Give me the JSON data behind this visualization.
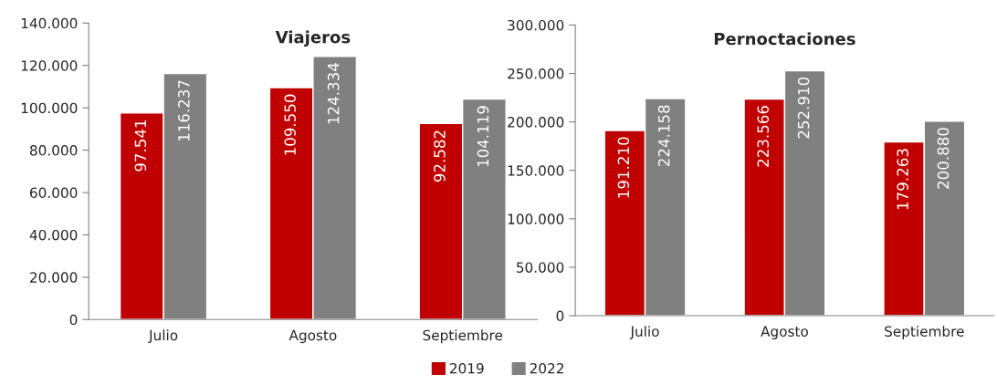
{
  "chart_data": [
    {
      "type": "bar",
      "title": "Viajeros",
      "categories": [
        "Julio",
        "Agosto",
        "Septiembre"
      ],
      "series": [
        {
          "name": "2019",
          "color": "#c00000",
          "values": [
            97541,
            109550,
            92582
          ],
          "value_labels": [
            "97.541",
            "109.550",
            "92.582"
          ]
        },
        {
          "name": "2022",
          "color": "#808080",
          "values": [
            116237,
            124334,
            104119
          ],
          "value_labels": [
            "116.237",
            "124.334",
            "104.119"
          ]
        }
      ],
      "ylim": [
        0,
        140000
      ],
      "yticks": [
        0,
        {
          "value": 20000,
          "label": "20.000"
        },
        {
          "value": 40000,
          "label": "40.000"
        },
        {
          "value": 60000,
          "label": "60.000"
        },
        {
          "value": 80000,
          "label": "80.000"
        },
        {
          "value": 100000,
          "label": "100.000"
        },
        {
          "value": 120000,
          "label": "120.000"
        },
        {
          "value": 140000,
          "label": "140.000"
        }
      ],
      "grid": false,
      "legend": "bottom"
    },
    {
      "type": "bar",
      "title": "Pernoctaciones",
      "categories": [
        "Julio",
        "Agosto",
        "Septiembre"
      ],
      "series": [
        {
          "name": "2019",
          "color": "#c00000",
          "values": [
            191210,
            223566,
            179263
          ],
          "value_labels": [
            "191.210",
            "223.566",
            "179.263"
          ]
        },
        {
          "name": "2022",
          "color": "#808080",
          "values": [
            224158,
            252910,
            200880
          ],
          "value_labels": [
            "224.158",
            "252.910",
            "200.880"
          ]
        }
      ],
      "ylim": [
        0,
        300000
      ],
      "yticks": [
        0,
        {
          "value": 50000,
          "label": "50.000"
        },
        {
          "value": 100000,
          "label": "100.000"
        },
        {
          "value": 150000,
          "label": "150.000"
        },
        {
          "value": 200000,
          "label": "200.000"
        },
        {
          "value": 250000,
          "label": "250.000"
        },
        {
          "value": 300000,
          "label": "300.000"
        }
      ],
      "grid": false
    }
  ]
}
